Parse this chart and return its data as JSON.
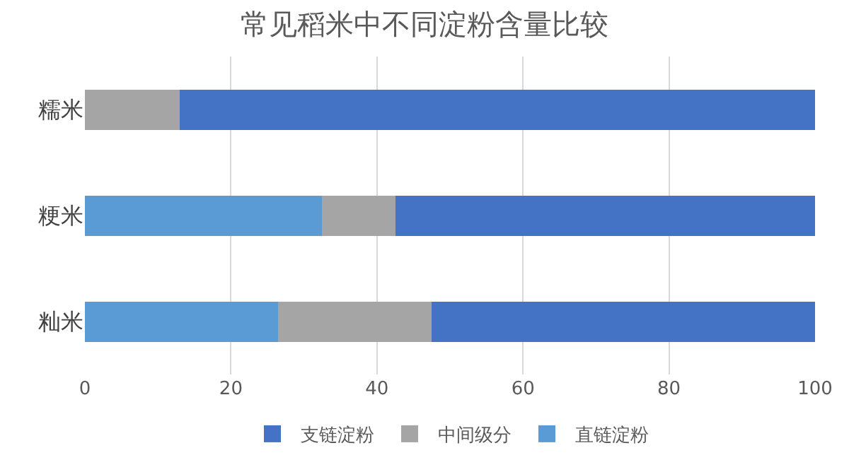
{
  "chart_data": {
    "type": "bar",
    "orientation": "horizontal",
    "stacked": true,
    "title": "常见稻米中不同淀粉含量比较",
    "categories": [
      "糯米",
      "粳米",
      "籼米"
    ],
    "series": [
      {
        "name": "直链淀粉",
        "color": "#5b9bd5",
        "values": [
          0,
          32.5,
          26.5
        ]
      },
      {
        "name": "中间级分",
        "color": "#a5a5a5",
        "values": [
          13,
          10,
          21
        ]
      },
      {
        "name": "支链淀粉",
        "color": "#4472c4",
        "values": [
          87,
          57.5,
          52.5
        ]
      }
    ],
    "xlim": [
      0,
      100
    ],
    "xticks": [
      0,
      20,
      40,
      60,
      80,
      100
    ],
    "grid": "x",
    "legend": "bottom"
  }
}
